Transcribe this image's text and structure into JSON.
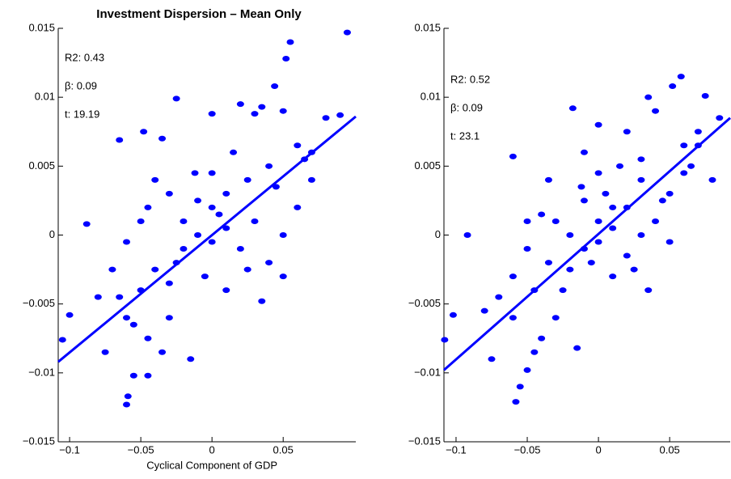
{
  "chart_data": [
    {
      "type": "scatter",
      "title": "Investment Dispersion – Mean Only",
      "x_label": "Cyclical Component of GDP",
      "color": "#0000ff",
      "annotations": [
        "R2: 0.43",
        "β: 0.09",
        "t: 19.19"
      ],
      "xlim": [
        -0.108,
        0.101
      ],
      "ylim": [
        -0.015,
        0.015
      ],
      "xticks": [
        {
          "value": -0.1,
          "label": "−0.1"
        },
        {
          "value": -0.05,
          "label": "−0.05"
        },
        0,
        0.05
      ],
      "yticks": [
        {
          "value": -0.015,
          "label": "−0.015"
        },
        {
          "value": -0.01,
          "label": "−0.01"
        },
        {
          "value": -0.005,
          "label": "−0.005"
        },
        0,
        0.005,
        0.01,
        0.015
      ],
      "points": {
        "x": [
          0.095,
          0.055,
          0.052,
          0.044,
          -0.025,
          -0.088,
          -0.1,
          -0.105,
          -0.06,
          -0.059,
          -0.055,
          -0.045,
          -0.065,
          -0.048,
          -0.035,
          0,
          0.02,
          0.035,
          0.03,
          0.05,
          0.08,
          0.07,
          0.06,
          0.04,
          0.025,
          0.01,
          0,
          -0.01,
          -0.02,
          -0.03,
          -0.04,
          -0.05,
          -0.06,
          -0.07,
          -0.08,
          -0.075,
          -0.06,
          -0.05,
          -0.04,
          -0.03,
          -0.02,
          -0.01,
          0,
          0.01,
          0.02,
          0.03,
          0.04,
          0.05,
          0.06,
          0.07,
          -0.015,
          -0.03,
          -0.045,
          0.035,
          0.05,
          0.01,
          -0.005,
          0.015,
          -0.012,
          0.045,
          -0.035,
          -0.055,
          0.025,
          0.005,
          -0.025,
          0.065,
          0.09,
          -0.065,
          0,
          -0.045
        ],
        "y": [
          0.0147,
          0.014,
          0.0128,
          0.0108,
          0.0099,
          0.0008,
          -0.0058,
          -0.0076,
          -0.0123,
          -0.0117,
          -0.0102,
          -0.0102,
          0.0069,
          0.0075,
          0.007,
          0.0088,
          0.0095,
          0.0093,
          0.0088,
          0.009,
          0.0085,
          0.006,
          0.0065,
          0.005,
          0.004,
          0.003,
          0.002,
          0.0025,
          0.001,
          0.003,
          0.004,
          0.001,
          -0.0005,
          -0.0025,
          -0.0045,
          -0.0085,
          -0.006,
          -0.004,
          -0.0025,
          -0.0035,
          -0.001,
          0,
          -0.0005,
          0.0005,
          -0.001,
          0.001,
          -0.002,
          0,
          0.002,
          0.004,
          -0.009,
          -0.006,
          -0.0075,
          -0.0048,
          -0.003,
          -0.004,
          -0.003,
          0.006,
          0.0045,
          0.0035,
          -0.0085,
          -0.0065,
          -0.0025,
          0.0015,
          -0.002,
          0.0055,
          0.0087,
          -0.0045,
          0.0045,
          0.002
        ]
      },
      "fit": {
        "x": [
          -0.108,
          0.101
        ],
        "y": [
          -0.0092,
          0.0086
        ]
      }
    },
    {
      "type": "scatter",
      "color": "#0000ff",
      "annotations": [
        "R2: 0.52",
        "β: 0.09",
        "t: 23.1"
      ],
      "xlim": [
        -0.1085,
        0.0925
      ],
      "ylim": [
        -0.015,
        0.015
      ],
      "xticks": [
        {
          "value": -0.1,
          "label": "−0.1"
        },
        {
          "value": -0.05,
          "label": "−0.05"
        },
        0,
        0.05
      ],
      "yticks": [
        {
          "value": -0.015,
          "label": "−0.015"
        },
        {
          "value": -0.01,
          "label": "−0.01"
        },
        {
          "value": -0.005,
          "label": "−0.005"
        },
        0,
        0.005,
        0.01,
        0.015
      ],
      "points": {
        "x": [
          0.075,
          0.058,
          0.052,
          0.035,
          -0.018,
          -0.092,
          -0.102,
          -0.108,
          -0.058,
          -0.055,
          -0.05,
          -0.06,
          -0.035,
          0,
          0.02,
          0.04,
          0.06,
          0.07,
          0.085,
          0.08,
          0.065,
          0.05,
          0.03,
          0.01,
          0,
          -0.01,
          -0.02,
          -0.03,
          -0.04,
          -0.05,
          -0.06,
          -0.07,
          -0.08,
          -0.075,
          -0.06,
          -0.045,
          -0.035,
          -0.02,
          -0.01,
          0,
          0.01,
          0.02,
          0.03,
          0.04,
          0.05,
          0.035,
          -0.015,
          -0.03,
          -0.04,
          0.01,
          -0.005,
          0.015,
          -0.012,
          0.045,
          -0.045,
          0.025,
          0.005,
          -0.025,
          0.06,
          0.07,
          0,
          -0.05,
          0.02,
          -0.01,
          0.03
        ],
        "y": [
          0.0101,
          0.0115,
          0.0108,
          0.01,
          0.0092,
          0,
          -0.0058,
          -0.0076,
          -0.0121,
          -0.011,
          -0.0098,
          0.0057,
          0.004,
          0.008,
          0.0075,
          0.009,
          0.0065,
          0.0075,
          0.0085,
          0.004,
          0.005,
          0.003,
          0.004,
          0.002,
          0.001,
          0.0025,
          0,
          0.001,
          0.0015,
          -0.001,
          -0.003,
          -0.0045,
          -0.0055,
          -0.009,
          -0.006,
          -0.004,
          -0.002,
          -0.0025,
          -0.001,
          -0.0005,
          0.0005,
          -0.0015,
          0,
          0.001,
          -0.0005,
          -0.004,
          -0.0082,
          -0.006,
          -0.0075,
          -0.003,
          -0.002,
          0.005,
          0.0035,
          0.0025,
          -0.0085,
          -0.0025,
          0.003,
          -0.004,
          0.0045,
          0.0065,
          0.0045,
          0.001,
          0.002,
          0.006,
          0.0055
        ]
      },
      "fit": {
        "x": [
          -0.1085,
          0.0925
        ],
        "y": [
          -0.0098,
          0.0085
        ]
      }
    }
  ]
}
